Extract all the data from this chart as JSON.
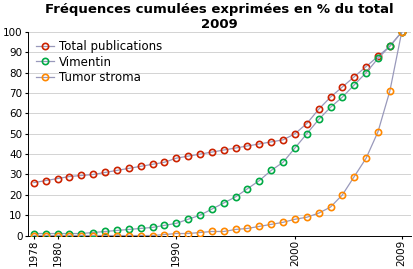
{
  "title_line1": "Fréquences cumulées exprimées en % du total",
  "title_line2": "2009",
  "years": [
    1978,
    1979,
    1980,
    1981,
    1982,
    1983,
    1984,
    1985,
    1986,
    1987,
    1988,
    1989,
    1990,
    1991,
    1992,
    1993,
    1994,
    1995,
    1996,
    1997,
    1998,
    1999,
    2000,
    2001,
    2002,
    2003,
    2004,
    2005,
    2006,
    2007,
    2008,
    2009
  ],
  "total_pubs": [
    26,
    27,
    28,
    29,
    29.5,
    30,
    31,
    32,
    33,
    34,
    35,
    36,
    38,
    39,
    40,
    41,
    42,
    43,
    44,
    45,
    46,
    47,
    50,
    55,
    62,
    68,
    73,
    78,
    83,
    88,
    93,
    100
  ],
  "vimentin": [
    1,
    1,
    1,
    1,
    1,
    1.5,
    2,
    2.5,
    3,
    3.5,
    4,
    5,
    6,
    8,
    10,
    13,
    16,
    19,
    23,
    27,
    32,
    36,
    43,
    50,
    57,
    63,
    68,
    74,
    80,
    87,
    93,
    100
  ],
  "tumor_stroma": [
    0,
    0,
    0,
    0,
    0,
    0,
    0,
    0,
    0,
    0,
    0,
    0.5,
    1,
    1,
    1.5,
    2,
    2,
    3,
    3.5,
    4.5,
    5.5,
    6.5,
    8,
    9,
    11,
    14,
    20,
    29,
    38,
    51,
    71,
    100
  ],
  "line_color_total": "#cc2200",
  "line_color_vimentin": "#00aa44",
  "line_color_stroma": "#ff8800",
  "legend_line_color": "#9999bb",
  "marker": "o",
  "markersize": 4.5,
  "markeredgewidth": 1.2,
  "linewidth": 0.9,
  "ylim": [
    0,
    100
  ],
  "xlim": [
    1977.5,
    2009.8
  ],
  "bg_color": "#ffffff",
  "grid_color": "#cccccc",
  "title_fontsize": 9.5,
  "legend_fontsize": 8.5,
  "tick_fontsize": 7.5,
  "xticks": [
    1978,
    1980,
    1990,
    2000,
    2009
  ],
  "yticks": [
    0,
    10,
    20,
    30,
    40,
    50,
    60,
    70,
    80,
    90,
    100
  ]
}
